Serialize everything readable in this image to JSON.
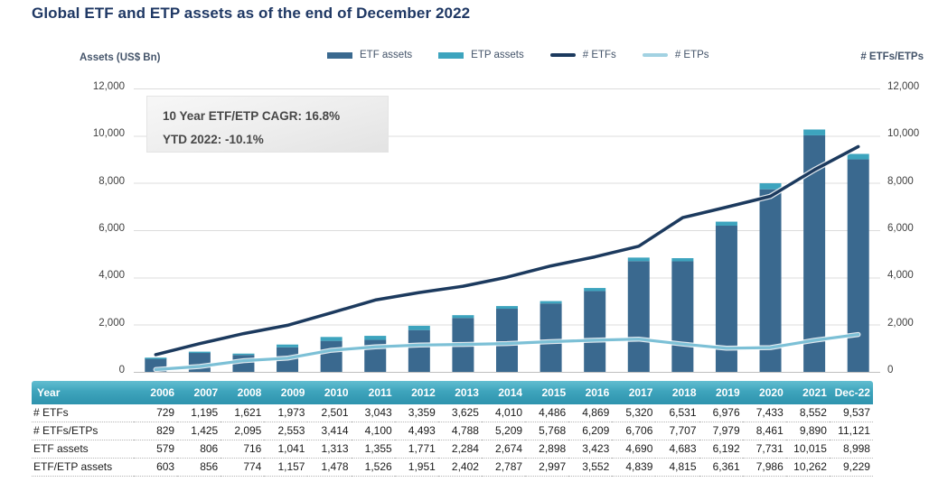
{
  "title": "Global ETF and ETP assets as of the end of December 2022",
  "axes": {
    "left_title": "Assets (US$ Bn)",
    "right_title": "# ETFs/ETPs",
    "tick_labels": [
      "0",
      "2,000",
      "4,000",
      "6,000",
      "8,000",
      "10,000",
      "12,000"
    ]
  },
  "legend": {
    "items": [
      {
        "label": "ETF assets",
        "type": "bar",
        "color": "#3A698F"
      },
      {
        "label": "ETP assets",
        "type": "bar",
        "color": "#3DA4BE"
      },
      {
        "label": "# ETFs",
        "type": "line",
        "color": "#1C3A5E"
      },
      {
        "label": "# ETPs",
        "type": "line",
        "color": "#A2D2E2"
      }
    ]
  },
  "annotation": {
    "line1": "10 Year ETF/ETP CAGR: 16.8%",
    "line2": "YTD 2022: -10.1%"
  },
  "chart_data": {
    "type": "bar",
    "bar_mode": "stacked",
    "categories": [
      "2006",
      "2007",
      "2008",
      "2009",
      "2010",
      "2011",
      "2012",
      "2013",
      "2014",
      "2015",
      "2016",
      "2017",
      "2018",
      "2019",
      "2020",
      "2021",
      "Dec-22"
    ],
    "bar_series": [
      {
        "name": "ETF assets",
        "color": "#3A698F",
        "values": [
          579,
          806,
          716,
          1041,
          1313,
          1355,
          1771,
          2284,
          2674,
          2898,
          3423,
          4690,
          4683,
          6192,
          7731,
          10015,
          8998
        ]
      },
      {
        "name": "ETP assets",
        "color": "#3DA4BE",
        "values": [
          24,
          50,
          58,
          116,
          165,
          171,
          180,
          118,
          113,
          99,
          129,
          149,
          132,
          169,
          255,
          247,
          231
        ]
      }
    ],
    "line_series": [
      {
        "name": "# ETFs",
        "color": "#1C3A5E",
        "values": [
          729,
          1195,
          1621,
          1973,
          2501,
          3043,
          3359,
          3625,
          4010,
          4486,
          4869,
          5320,
          6531,
          6976,
          7433,
          8552,
          9537
        ]
      },
      {
        "name": "# ETPs",
        "color": "#7CC0D6",
        "values": [
          100,
          230,
          474,
          580,
          913,
          1057,
          1134,
          1163,
          1199,
          1282,
          1340,
          1386,
          1176,
          1003,
          1028,
          1338,
          1584
        ]
      }
    ],
    "title": "Global ETF and ETP assets as of the end of December 2022",
    "xlabel": "",
    "ylabel_left": "Assets (US$ Bn)",
    "ylabel_right": "# ETFs/ETPs",
    "ylim": [
      0,
      12000
    ],
    "ytick_step": 2000,
    "grid": true,
    "legend_position": "top"
  },
  "table": {
    "header": [
      "Year",
      "2006",
      "2007",
      "2008",
      "2009",
      "2010",
      "2011",
      "2012",
      "2013",
      "2014",
      "2015",
      "2016",
      "2017",
      "2018",
      "2019",
      "2020",
      "2021",
      "Dec-22"
    ],
    "rows": [
      {
        "label": "# ETFs",
        "values": [
          "729",
          "1,195",
          "1,621",
          "1,973",
          "2,501",
          "3,043",
          "3,359",
          "3,625",
          "4,010",
          "4,486",
          "4,869",
          "5,320",
          "6,531",
          "6,976",
          "7,433",
          "8,552",
          "9,537"
        ]
      },
      {
        "label": "# ETFs/ETPs",
        "values": [
          "829",
          "1,425",
          "2,095",
          "2,553",
          "3,414",
          "4,100",
          "4,493",
          "4,788",
          "5,209",
          "5,768",
          "6,209",
          "6,706",
          "7,707",
          "7,979",
          "8,461",
          "9,890",
          "11,121"
        ]
      },
      {
        "label": "ETF assets",
        "values": [
          "579",
          "806",
          "716",
          "1,041",
          "1,313",
          "1,355",
          "1,771",
          "2,284",
          "2,674",
          "2,898",
          "3,423",
          "4,690",
          "4,683",
          "6,192",
          "7,731",
          "10,015",
          "8,998"
        ]
      },
      {
        "label": "ETF/ETP assets",
        "values": [
          "603",
          "856",
          "774",
          "1,157",
          "1,478",
          "1,526",
          "1,951",
          "2,402",
          "2,787",
          "2,997",
          "3,552",
          "4,839",
          "4,815",
          "6,361",
          "7,986",
          "10,262",
          "9,229"
        ]
      }
    ]
  },
  "colors": {
    "title": "#1F3864",
    "grid_line": "#dcdcdc",
    "axis_zero_line": "#bfbfbf",
    "table_header_top": "#62BED1",
    "table_header_bottom": "#2E93AE",
    "etf_bar": "#3A698F",
    "etp_bar": "#3DA4BE",
    "etf_line": "#1C3A5E",
    "etp_line": "#7CC0D6"
  }
}
